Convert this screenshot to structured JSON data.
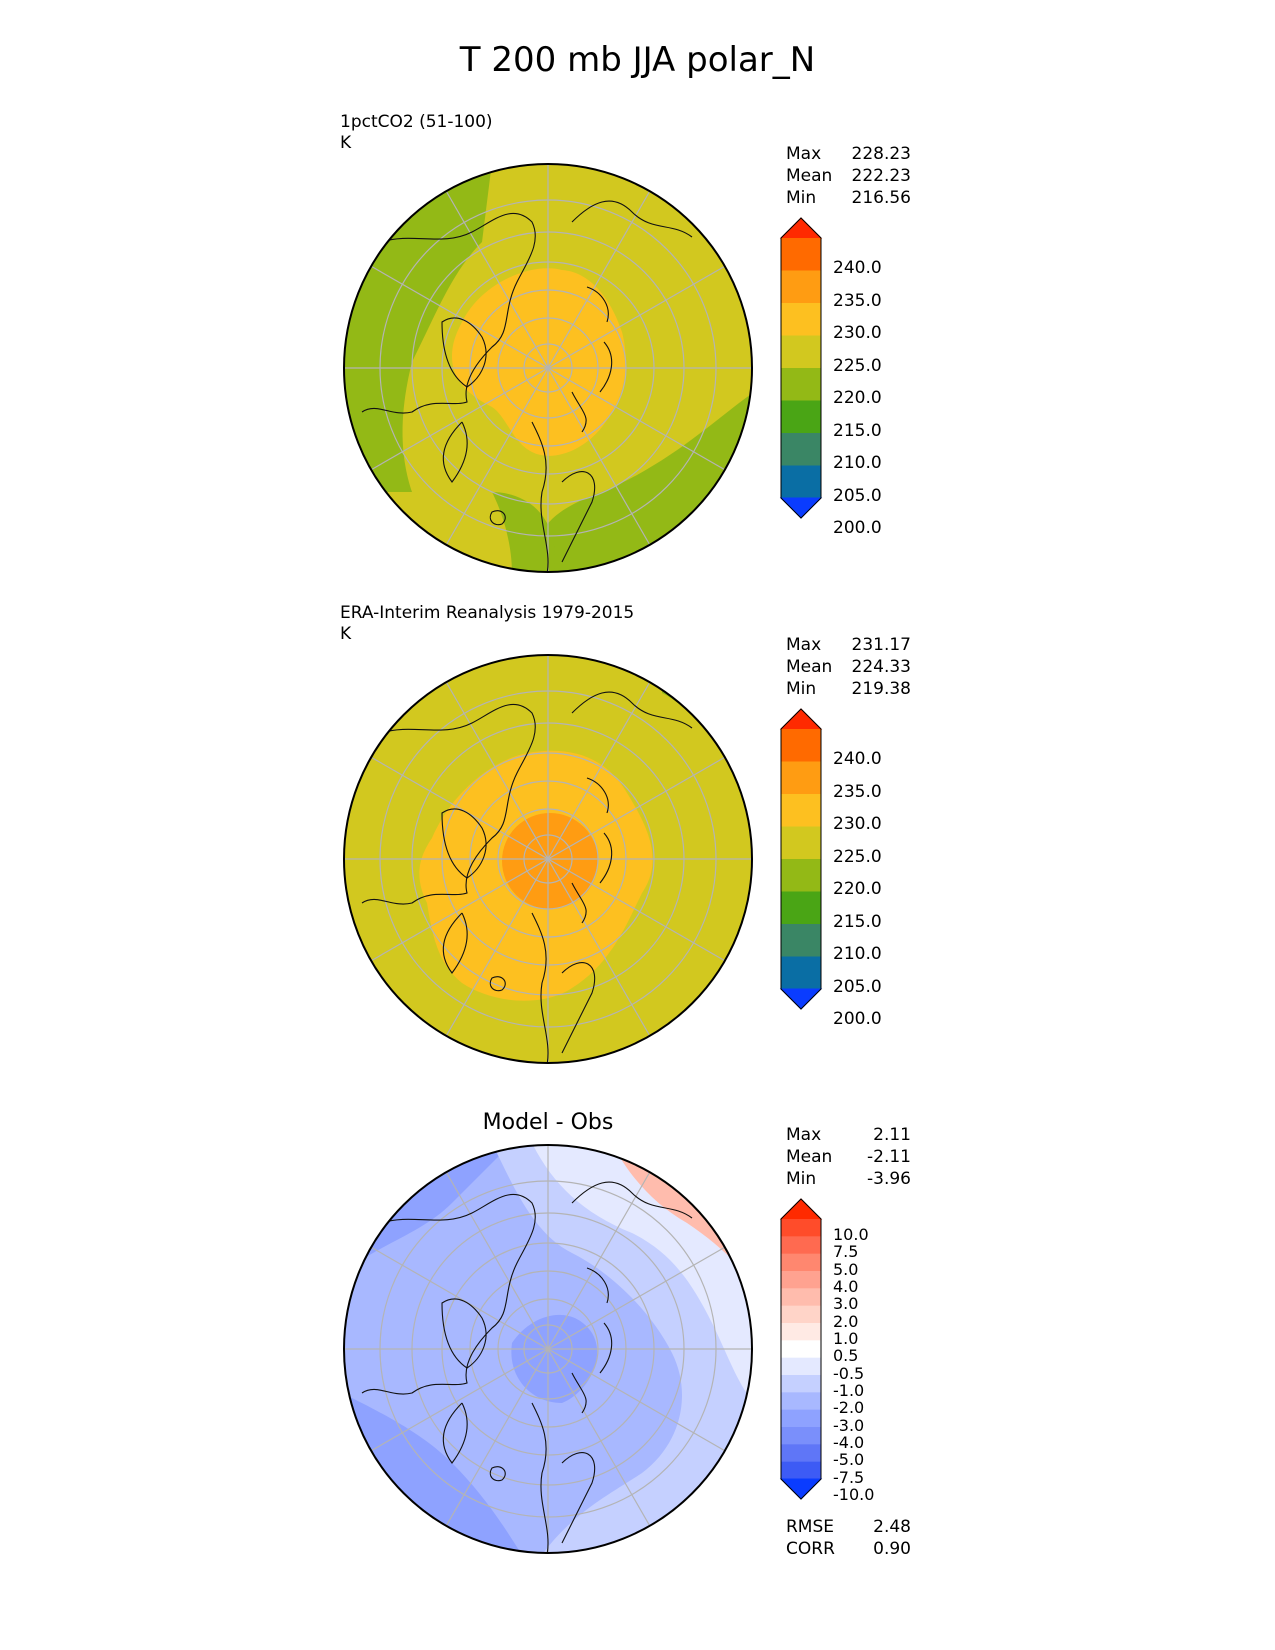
{
  "title": "T 200 mb JJA polar_N",
  "panels": [
    {
      "id": "model",
      "name": "1pctCO2 (51-100)",
      "units": "K",
      "stats": [
        {
          "label": "Max",
          "value": "228.23"
        },
        {
          "label": "Mean",
          "value": "222.23"
        },
        {
          "label": "Min",
          "value": "216.56"
        }
      ]
    },
    {
      "id": "obs",
      "name": "ERA-Interim Reanalysis 1979-2015",
      "units": "K",
      "stats": [
        {
          "label": "Max",
          "value": "231.17"
        },
        {
          "label": "Mean",
          "value": "224.33"
        },
        {
          "label": "Min",
          "value": "219.38"
        }
      ]
    },
    {
      "id": "diff",
      "subtitle": "Model - Obs",
      "stats": [
        {
          "label": "Max",
          "value": "2.11"
        },
        {
          "label": "Mean",
          "value": "-2.11"
        },
        {
          "label": "Min",
          "value": "-3.96"
        }
      ],
      "metrics": [
        {
          "label": "RMSE",
          "value": "2.48"
        },
        {
          "label": "CORR",
          "value": "0.90"
        }
      ]
    }
  ],
  "colorbar_main": {
    "ticks": [
      "240.0",
      "235.0",
      "230.0",
      "225.0",
      "220.0",
      "215.0",
      "210.0",
      "205.0",
      "200.0"
    ],
    "colors_top_to_bottom": [
      "#ff2a00",
      "#ff6a00",
      "#ff9c12",
      "#fdc020",
      "#d2c81f",
      "#93b916",
      "#4aa515",
      "#3a8665",
      "#0a6ea4",
      "#0a3cff"
    ]
  },
  "colorbar_diff": {
    "ticks": [
      "10.0",
      "7.5",
      "5.0",
      "4.0",
      "3.0",
      "2.0",
      "1.0",
      "0.5",
      "-0.5",
      "-1.0",
      "-2.0",
      "-3.0",
      "-4.0",
      "-5.0",
      "-7.5",
      "-10.0"
    ],
    "colors_top_to_bottom": [
      "#ff2a00",
      "#ff4c2a",
      "#ff6a50",
      "#ff876f",
      "#ffa290",
      "#ffbcad",
      "#ffd4c8",
      "#ffeae4",
      "#ffffff",
      "#e4e9ff",
      "#c5d0ff",
      "#a8b8ff",
      "#8ea2ff",
      "#7a8ffb",
      "#5f76f7",
      "#3d5bf5",
      "#0a3cff"
    ]
  },
  "colors": {
    "model_base": "#d2c81f",
    "model_warm": "#fdc020",
    "model_cool": "#93b916",
    "obs_base": "#d2c81f",
    "obs_warm": "#fdc020",
    "obs_core": "#ff9c12",
    "obs_cool": "#93b916",
    "diff_base": "#a8b8ff",
    "diff_dark": "#8ea2ff",
    "diff_light": "#c5d0ff",
    "diff_pale": "#e4e9ff",
    "diff_pos": "#ffbcad"
  }
}
